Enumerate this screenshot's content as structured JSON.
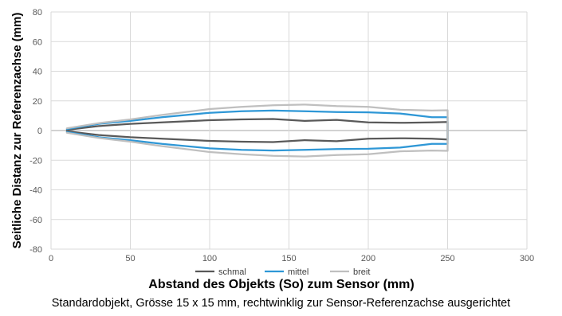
{
  "chart_data": {
    "type": "line",
    "title": "",
    "xlabel": "Abstand des Objekts (So) zum Sensor (mm)",
    "ylabel": "Seitliche Distanz zur Referenzachse (mm)",
    "xlim": [
      0,
      300
    ],
    "ylim": [
      -80,
      80
    ],
    "xticks": [
      "0",
      "50",
      "100",
      "150",
      "200",
      "250",
      "300"
    ],
    "yticks": [
      "80",
      "60",
      "40",
      "20",
      "0",
      "-20",
      "-40",
      "-60",
      "-80"
    ],
    "grid": true,
    "legend_position": "bottom",
    "series": [
      {
        "name": "schmal",
        "color": "#595959",
        "x": [
          10,
          30,
          50,
          70,
          100,
          120,
          140,
          160,
          180,
          200,
          220,
          240,
          250,
          250,
          240,
          220,
          200,
          180,
          160,
          140,
          120,
          100,
          70,
          50,
          30,
          10
        ],
        "y": [
          0.5,
          3,
          4.5,
          5.5,
          7,
          7.5,
          7.8,
          6.5,
          7.2,
          5.5,
          5.2,
          5.5,
          5.8,
          -6,
          -5.5,
          -5.2,
          -5.5,
          -7.2,
          -6.5,
          -7.8,
          -7.5,
          -7,
          -5.5,
          -4.5,
          -3,
          -0.5
        ]
      },
      {
        "name": "mittel",
        "color": "#2e97d6",
        "x": [
          10,
          30,
          50,
          70,
          100,
          120,
          140,
          160,
          180,
          200,
          220,
          240,
          250,
          250,
          240,
          220,
          200,
          180,
          160,
          140,
          120,
          100,
          70,
          50,
          30,
          10
        ],
        "y": [
          1,
          4.5,
          6.5,
          9,
          12,
          13,
          13.5,
          13,
          12.5,
          12.3,
          11.5,
          9,
          9,
          -9,
          -9,
          -11.5,
          -12.3,
          -12.5,
          -13,
          -13.5,
          -13,
          -12,
          -9,
          -6.5,
          -4.5,
          -1
        ]
      },
      {
        "name": "breit",
        "color": "#bfbfbf",
        "x": [
          10,
          30,
          50,
          70,
          100,
          120,
          140,
          160,
          180,
          200,
          220,
          240,
          250,
          250,
          240,
          220,
          200,
          180,
          160,
          140,
          120,
          100,
          70,
          50,
          30,
          10
        ],
        "y": [
          1.5,
          5,
          7.5,
          10.5,
          14.5,
          16,
          17,
          17.5,
          16.5,
          16,
          14,
          13.5,
          13.7,
          -13.7,
          -13.5,
          -14,
          -16,
          -16.5,
          -17.5,
          -17,
          -16,
          -14.5,
          -10.5,
          -7.5,
          -5,
          -1.5
        ]
      }
    ]
  },
  "caption": "Standardobjekt, Grösse 15 x 15 mm, rechtwinklig zur Sensor-Referenzachse ausgerichtet"
}
